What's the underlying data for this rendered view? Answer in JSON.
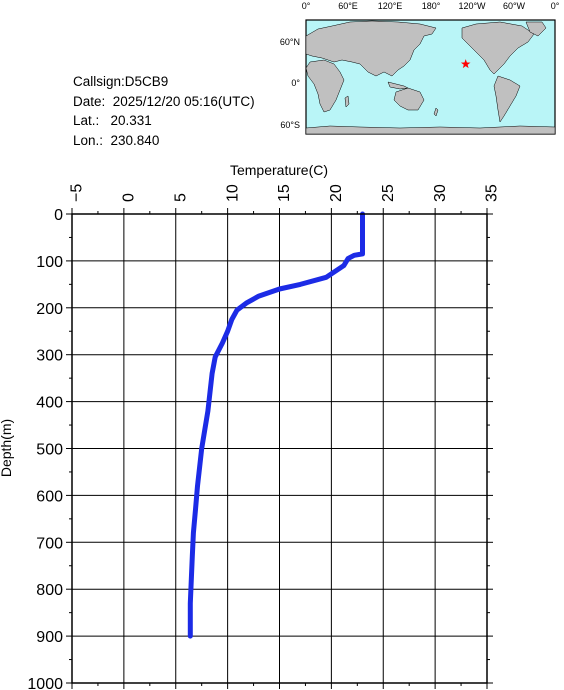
{
  "info": {
    "callsign": "Callsign:D5CB9",
    "date": "Date:  2025/12/20 05:16(UTC)",
    "lat": "Lat.:   20.331",
    "lon": "Lon.:  230.840"
  },
  "map": {
    "top_labels": [
      "0°",
      "60°E",
      "120°E",
      "180°",
      "120°W",
      "60°W",
      "0°"
    ],
    "left_labels": [
      "60°N",
      "0°",
      "60°S"
    ],
    "ocean_color": "#b9f5f7",
    "land_color": "#c0c0c0",
    "marker_color": "#ff0000",
    "marker_icon": "star-icon",
    "marker_lat": 20.331,
    "marker_lon": 230.84
  },
  "chart_data": {
    "type": "line",
    "xlabel": "Temperature(C)",
    "ylabel": "Depth(m)",
    "xlim": [
      -5,
      35
    ],
    "ylim": [
      0,
      1000
    ],
    "y_inverted": true,
    "x_axis_position": "top",
    "grid": true,
    "x_ticks": [
      -5,
      0,
      5,
      10,
      15,
      20,
      25,
      30,
      35
    ],
    "y_ticks": [
      0,
      100,
      200,
      300,
      400,
      500,
      600,
      700,
      800,
      900,
      1000
    ],
    "series": [
      {
        "color": "#1c2be6",
        "points": [
          [
            23.0,
            0
          ],
          [
            23.0,
            40
          ],
          [
            23.0,
            85
          ],
          [
            22.2,
            88
          ],
          [
            21.6,
            95
          ],
          [
            21.2,
            110
          ],
          [
            19.5,
            135
          ],
          [
            17.0,
            150
          ],
          [
            15.0,
            160
          ],
          [
            13.0,
            175
          ],
          [
            11.8,
            190
          ],
          [
            10.9,
            205
          ],
          [
            10.4,
            225
          ],
          [
            10.0,
            250
          ],
          [
            9.5,
            275
          ],
          [
            8.8,
            305
          ],
          [
            8.5,
            340
          ],
          [
            8.3,
            380
          ],
          [
            8.1,
            420
          ],
          [
            7.8,
            460
          ],
          [
            7.5,
            500
          ],
          [
            7.3,
            540
          ],
          [
            7.1,
            580
          ],
          [
            6.9,
            630
          ],
          [
            6.7,
            680
          ],
          [
            6.6,
            730
          ],
          [
            6.5,
            780
          ],
          [
            6.4,
            830
          ],
          [
            6.4,
            870
          ],
          [
            6.4,
            900
          ]
        ]
      }
    ]
  }
}
